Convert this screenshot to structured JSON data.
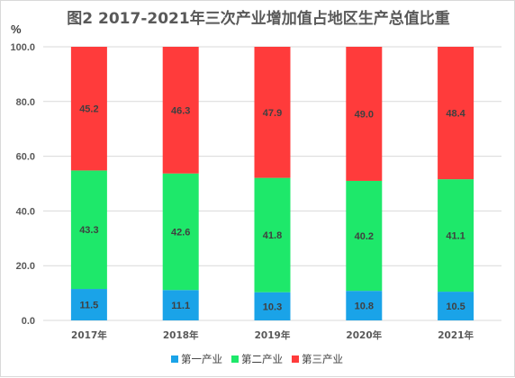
{
  "chart_data": {
    "type": "bar",
    "stacked": true,
    "title": "图2  2017-2021年三次产业增加值占地区生产总值比重",
    "ylabel": "%",
    "ylim": [
      0,
      100
    ],
    "yticks": [
      "0.0",
      "20.0",
      "40.0",
      "60.0",
      "80.0",
      "100.0"
    ],
    "categories": [
      "2017年",
      "2018年",
      "2019年",
      "2020年",
      "2021年"
    ],
    "series": [
      {
        "name": "第一产业",
        "color": "#1aa3e8",
        "values": [
          11.5,
          11.1,
          10.3,
          10.8,
          10.5
        ],
        "labels": [
          "11.5",
          "11.1",
          "10.3",
          "10.8",
          "10.5"
        ]
      },
      {
        "name": "第二产业",
        "color": "#1ee86a",
        "values": [
          43.3,
          42.6,
          41.8,
          40.2,
          41.1
        ],
        "labels": [
          "43.3",
          "42.6",
          "41.8",
          "40.2",
          "41.1"
        ]
      },
      {
        "name": "第三产业",
        "color": "#ff3b3b",
        "values": [
          45.2,
          46.3,
          47.9,
          49.0,
          48.4
        ],
        "labels": [
          "45.2",
          "46.3",
          "47.9",
          "49.0",
          "48.4"
        ]
      }
    ],
    "grid": true,
    "legend_position": "bottom"
  }
}
